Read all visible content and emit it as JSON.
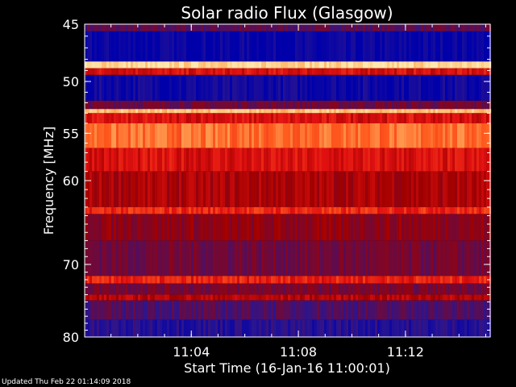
{
  "chart_data": {
    "type": "heatmap",
    "title": "Solar radio Flux (Glasgow)",
    "ylabel": "Frequency [MHz]",
    "xlabel": "Start Time (16-Jan-16 11:00:01)",
    "x_ticks": [
      "11:04",
      "11:08",
      "11:12"
    ],
    "y_ticks": [
      "45",
      "50",
      "55",
      "60",
      "70",
      "80"
    ],
    "ylim": [
      45,
      80
    ],
    "y_scale": "log",
    "x_range": [
      "11:00:01",
      "11:15:10"
    ],
    "colormap": [
      "#0000aa",
      "#2a1590",
      "#6a0a40",
      "#a00000",
      "#e01010",
      "#ff5a1e",
      "#ffb060",
      "#ffe8b0"
    ],
    "bands": [
      {
        "from": 45.0,
        "to": 45.6,
        "level": 0.25
      },
      {
        "from": 45.6,
        "to": 48.2,
        "level": 0.02
      },
      {
        "from": 48.2,
        "to": 48.8,
        "level": 0.95
      },
      {
        "from": 48.8,
        "to": 49.4,
        "level": 0.55
      },
      {
        "from": 49.4,
        "to": 51.8,
        "level": 0.05
      },
      {
        "from": 51.8,
        "to": 52.6,
        "level": 0.3
      },
      {
        "from": 52.6,
        "to": 53.0,
        "level": 0.9
      },
      {
        "from": 53.0,
        "to": 54.0,
        "level": 0.55
      },
      {
        "from": 54.0,
        "to": 56.5,
        "level": 0.75
      },
      {
        "from": 56.5,
        "to": 59.0,
        "level": 0.55
      },
      {
        "from": 59.0,
        "to": 63.0,
        "level": 0.45
      },
      {
        "from": 63.0,
        "to": 63.8,
        "level": 0.62
      },
      {
        "from": 63.8,
        "to": 67.0,
        "level": 0.38
      },
      {
        "from": 67.0,
        "to": 71.5,
        "level": 0.3
      },
      {
        "from": 71.5,
        "to": 72.5,
        "level": 0.6
      },
      {
        "from": 72.5,
        "to": 74.0,
        "level": 0.32
      },
      {
        "from": 74.0,
        "to": 74.8,
        "level": 0.48
      },
      {
        "from": 74.8,
        "to": 77.5,
        "level": 0.22
      },
      {
        "from": 77.5,
        "to": 80.0,
        "level": 0.12
      }
    ]
  },
  "footer": {
    "updated_text": "Updated Thu Feb 22 01:14:09 2018"
  }
}
